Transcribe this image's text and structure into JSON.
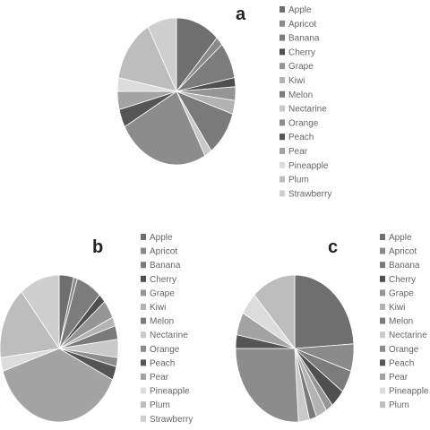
{
  "chart_data": [
    {
      "type": "pie",
      "panel_label": "a",
      "legend": [
        "Apple",
        "Apricot",
        "Banana",
        "Cherry",
        "Grape",
        "Kiwi",
        "Melon",
        "Nectarine",
        "Orange",
        "Peach",
        "Pear",
        "Pineapple",
        "Plum",
        "Strawberry"
      ],
      "slices": [
        {
          "name": "Apple",
          "value": 12,
          "color": "#6f6f6f"
        },
        {
          "name": "Apricot",
          "value": 2,
          "color": "#8a8a8a"
        },
        {
          "name": "Banana",
          "value": 8,
          "color": "#7c7c7c"
        },
        {
          "name": "Cherry",
          "value": 2,
          "color": "#4f4f4f"
        },
        {
          "name": "Grape",
          "value": 3,
          "color": "#959595"
        },
        {
          "name": "Kiwi",
          "value": 3,
          "color": "#b3b3b3"
        },
        {
          "name": "Melon",
          "value": 10,
          "color": "#7a7a7a"
        },
        {
          "name": "Nectarine",
          "value": 2,
          "color": "#c9c9c9"
        },
        {
          "name": "Orange",
          "value": 25,
          "color": "#8c8c8c"
        },
        {
          "name": "Peach",
          "value": 4,
          "color": "#555555"
        },
        {
          "name": "Pear",
          "value": 4,
          "color": "#a3a3a3"
        },
        {
          "name": "Pineapple",
          "value": 3,
          "color": "#dcdcdc"
        },
        {
          "name": "Plum",
          "value": 14,
          "color": "#bdbdbd"
        },
        {
          "name": "Strawberry",
          "value": 8,
          "color": "#cfcfcf"
        }
      ]
    },
    {
      "type": "pie",
      "panel_label": "b",
      "legend": [
        "Apple",
        "Apricot",
        "Banana",
        "Cherry",
        "Grape",
        "Kiwi",
        "Melon",
        "Nectarine",
        "Orange",
        "Peach",
        "Pear",
        "Pineapple",
        "Plum",
        "Strawberry"
      ],
      "slices": [
        {
          "name": "Apple",
          "value": 4,
          "color": "#6f6f6f"
        },
        {
          "name": "Apricot",
          "value": 1,
          "color": "#8a8a8a"
        },
        {
          "name": "Banana",
          "value": 7,
          "color": "#7c7c7c"
        },
        {
          "name": "Cherry",
          "value": 2,
          "color": "#4f4f4f"
        },
        {
          "name": "Grape",
          "value": 4,
          "color": "#959595"
        },
        {
          "name": "Kiwi",
          "value": 2,
          "color": "#b3b3b3"
        },
        {
          "name": "Melon",
          "value": 3,
          "color": "#7a7a7a"
        },
        {
          "name": "Nectarine",
          "value": 4,
          "color": "#c9c9c9"
        },
        {
          "name": "Orange",
          "value": 2,
          "color": "#8c8c8c"
        },
        {
          "name": "Peach",
          "value": 3,
          "color": "#555555"
        },
        {
          "name": "Pear",
          "value": 38,
          "color": "#a3a3a3"
        },
        {
          "name": "Pineapple",
          "value": 3,
          "color": "#dcdcdc"
        },
        {
          "name": "Plum",
          "value": 16,
          "color": "#bdbdbd"
        },
        {
          "name": "Strawberry",
          "value": 11,
          "color": "#cfcfcf"
        }
      ]
    },
    {
      "type": "pie",
      "panel_label": "c",
      "legend": [
        "Apple",
        "Apricot",
        "Banana",
        "Cherry",
        "Grape",
        "Kiwi",
        "Melon",
        "Nectarine",
        "Orange",
        "Peach",
        "Pear",
        "Pineapple",
        "Plum"
      ],
      "slices": [
        {
          "name": "Apple",
          "value": 24,
          "color": "#6f6f6f"
        },
        {
          "name": "Apricot",
          "value": 6,
          "color": "#8a8a8a"
        },
        {
          "name": "Banana",
          "value": 5,
          "color": "#7c7c7c"
        },
        {
          "name": "Cherry",
          "value": 4,
          "color": "#4f4f4f"
        },
        {
          "name": "Grape",
          "value": 2,
          "color": "#959595"
        },
        {
          "name": "Kiwi",
          "value": 3,
          "color": "#b3b3b3"
        },
        {
          "name": "Melon",
          "value": 2,
          "color": "#7a7a7a"
        },
        {
          "name": "Nectarine",
          "value": 3,
          "color": "#c9c9c9"
        },
        {
          "name": "Orange",
          "value": 26,
          "color": "#8c8c8c"
        },
        {
          "name": "Peach",
          "value": 3,
          "color": "#555555"
        },
        {
          "name": "Pear",
          "value": 5,
          "color": "#a3a3a3"
        },
        {
          "name": "Pineapple",
          "value": 5,
          "color": "#dcdcdc"
        },
        {
          "name": "Plum",
          "value": 12,
          "color": "#bdbdbd"
        }
      ]
    }
  ]
}
